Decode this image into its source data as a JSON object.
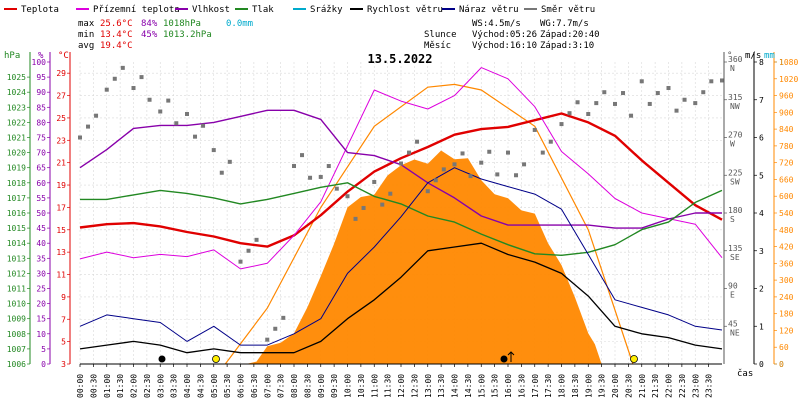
{
  "legend": [
    {
      "label": "Teplota",
      "color": "#e00000"
    },
    {
      "label": "Přízemní teplota",
      "color": "#dd00dd"
    },
    {
      "label": "Vlhkost",
      "color": "#8800aa"
    },
    {
      "label": "Tlak",
      "color": "#228822"
    },
    {
      "label": "Srážky",
      "color": "#00aacc"
    },
    {
      "label": "Rychlost větru",
      "color": "#000000"
    },
    {
      "label": "Náraz větru",
      "color": "#000088"
    },
    {
      "label": "Směr větru",
      "color": "#777777"
    }
  ],
  "stats": {
    "max_label": "max",
    "max_temp": "25.6°C",
    "max_hum": "84%",
    "max_press": "1018hPa",
    "rain": "0.0mm",
    "min_label": "min",
    "min_temp": "13.4°C",
    "min_hum": "45%",
    "min_press": "1013.2hPa",
    "avg_label": "avg",
    "avg_temp": "19.4°C"
  },
  "wind": {
    "ws": "WS:4.5m/s",
    "wg": "WG:7.7m/s"
  },
  "sun": {
    "label": "Slunce",
    "rise": "Východ:05:26",
    "set": "Západ:20:40"
  },
  "moon": {
    "label": "Měsíc",
    "rise": "Východ:16:10",
    "set": "Západ:3:10"
  },
  "date": "13.5.2022",
  "axis_units": {
    "hpa": "hPa",
    "pct": "%",
    "degc": "°C",
    "deg": "°",
    "ms": "m/s",
    "mm": "mm",
    "time": "čas"
  },
  "colors": {
    "temp": "#e00000",
    "ground": "#dd00dd",
    "hum": "#8800aa",
    "press": "#228822",
    "rain": "#00aacc",
    "ws": "#000000",
    "wg": "#000088",
    "wd": "#777777",
    "sun": "#ff8800",
    "grid": "#d9d9d9"
  },
  "chart_data": {
    "type": "line",
    "title": "13.5.2022",
    "xlabel": "čas",
    "x_ticks": [
      "00:00",
      "00:30",
      "01:00",
      "01:30",
      "02:00",
      "02:30",
      "03:00",
      "03:30",
      "04:00",
      "04:30",
      "05:00",
      "05:30",
      "06:00",
      "06:30",
      "07:00",
      "07:30",
      "08:00",
      "08:30",
      "09:00",
      "09:30",
      "10:00",
      "10:30",
      "11:00",
      "11:30",
      "12:00",
      "12:30",
      "13:00",
      "13:30",
      "14:00",
      "14:30",
      "15:00",
      "15:30",
      "16:00",
      "16:30",
      "17:00",
      "17:30",
      "18:00",
      "18:30",
      "19:00",
      "19:30",
      "20:00",
      "20:30",
      "21:00",
      "21:30",
      "22:00",
      "22:30",
      "23:00",
      "23:30"
    ],
    "axes": {
      "pressure": {
        "label": "hPa",
        "ticks": [
          "1006",
          "1007",
          "1008",
          "1009",
          "1010",
          "1011",
          "1012",
          "1013",
          "1014",
          "1015",
          "1016",
          "1017",
          "1018",
          "1019",
          "1020",
          "1021",
          "1022",
          "1023",
          "1024",
          "1025"
        ],
        "range": [
          1006,
          1026
        ]
      },
      "humidity": {
        "label": "%",
        "ticks": [
          "0",
          "5",
          "10",
          "15",
          "20",
          "25",
          "30",
          "35",
          "40",
          "45",
          "50",
          "55",
          "60",
          "65",
          "70",
          "75",
          "80",
          "85",
          "90",
          "95",
          "100"
        ],
        "range": [
          0,
          100
        ]
      },
      "temperature": {
        "label": "°C",
        "ticks": [
          "3",
          "5",
          "7",
          "9",
          "11",
          "13",
          "15",
          "17",
          "19",
          "21",
          "23",
          "25",
          "27",
          "29"
        ],
        "range": [
          3,
          30
        ]
      },
      "direction": {
        "label": "°",
        "ticks": [
          "45 NE",
          "90 E",
          "135 SE",
          "180 S",
          "225 SW",
          "270 W",
          "315 NW",
          "360 N"
        ],
        "range": [
          0,
          360
        ]
      },
      "wind_speed": {
        "label": "m/s",
        "ticks": [
          "0",
          "1",
          "2",
          "3",
          "4",
          "5",
          "6",
          "7",
          "8"
        ],
        "range": [
          0,
          8
        ]
      },
      "solar": {
        "label": "",
        "ticks": [
          "0",
          "60",
          "120",
          "180",
          "240",
          "300",
          "360",
          "420",
          "480",
          "540",
          "600",
          "660",
          "720",
          "780",
          "840",
          "900",
          "960",
          "1020",
          "1080"
        ],
        "range": [
          0,
          1080
        ]
      },
      "rain": {
        "label": "mm",
        "ticks": [
          "0",
          "1"
        ],
        "range": [
          0,
          1
        ]
      }
    },
    "series": [
      {
        "name": "Teplota",
        "unit": "°C",
        "x": [
          0,
          1,
          2,
          3,
          4,
          5,
          6,
          7,
          8,
          9,
          10,
          11,
          12,
          13,
          14,
          15,
          16,
          17,
          18,
          19,
          20,
          21,
          22,
          23,
          24
        ],
        "values": [
          15.2,
          15.5,
          15.6,
          15.3,
          14.8,
          14.4,
          13.8,
          13.5,
          14.5,
          16.3,
          18.4,
          20.2,
          21.4,
          22.4,
          23.5,
          24.0,
          24.2,
          24.8,
          25.4,
          24.6,
          23.4,
          21.2,
          19.2,
          17.2,
          15.9
        ]
      },
      {
        "name": "Přízemní teplota",
        "unit": "°C",
        "x": [
          0,
          1,
          2,
          3,
          4,
          5,
          6,
          7,
          8,
          9,
          10,
          11,
          12,
          13,
          14,
          15,
          16,
          17,
          18,
          19,
          20,
          21,
          22,
          23,
          24
        ],
        "values": [
          12.4,
          13.0,
          12.5,
          12.8,
          12.6,
          13.2,
          11.5,
          12.0,
          14.5,
          17.5,
          22.5,
          27.5,
          26.5,
          25.8,
          27.0,
          29.5,
          28.5,
          26.0,
          22.0,
          20.0,
          17.8,
          16.5,
          16.0,
          15.5,
          12.5
        ]
      },
      {
        "name": "Vlhkost",
        "unit": "%",
        "x": [
          0,
          1,
          2,
          3,
          4,
          5,
          6,
          7,
          8,
          9,
          10,
          11,
          12,
          13,
          14,
          15,
          16,
          17,
          18,
          19,
          20,
          21,
          22,
          23,
          24
        ],
        "values": [
          65,
          71,
          78,
          79,
          79,
          80,
          82,
          84,
          84,
          81,
          70,
          69,
          66,
          60,
          55,
          49,
          46,
          46,
          46,
          46,
          45,
          45,
          48,
          50,
          50
        ]
      },
      {
        "name": "Tlak",
        "unit": "hPa",
        "x": [
          0,
          1,
          2,
          3,
          4,
          5,
          6,
          7,
          8,
          9,
          10,
          11,
          12,
          13,
          14,
          15,
          16,
          17,
          18,
          19,
          20,
          21,
          22,
          23,
          24
        ],
        "values": [
          1016.9,
          1016.9,
          1017.2,
          1017.5,
          1017.3,
          1017.0,
          1016.6,
          1016.9,
          1017.3,
          1017.7,
          1018.0,
          1017.1,
          1016.6,
          1015.8,
          1015.4,
          1014.6,
          1013.9,
          1013.3,
          1013.2,
          1013.4,
          1013.9,
          1014.9,
          1015.4,
          1016.7,
          1017.5
        ]
      },
      {
        "name": "Srážky",
        "unit": "mm",
        "x": [
          0,
          24
        ],
        "values": [
          0,
          0
        ]
      },
      {
        "name": "Rychlost větru",
        "unit": "m/s",
        "x": [
          0,
          1,
          2,
          3,
          4,
          5,
          6,
          7,
          8,
          9,
          10,
          11,
          12,
          13,
          14,
          15,
          16,
          17,
          18,
          19,
          20,
          21,
          22,
          23,
          24
        ],
        "values": [
          0.4,
          0.5,
          0.6,
          0.5,
          0.3,
          0.4,
          0.3,
          0.3,
          0.3,
          0.6,
          1.2,
          1.7,
          2.3,
          3.0,
          3.1,
          3.2,
          2.9,
          2.7,
          2.4,
          1.8,
          1.0,
          0.8,
          0.7,
          0.5,
          0.4
        ]
      },
      {
        "name": "Náraz větru",
        "unit": "m/s",
        "x": [
          0,
          1,
          2,
          3,
          4,
          5,
          6,
          7,
          8,
          9,
          10,
          11,
          12,
          13,
          14,
          15,
          16,
          17,
          18,
          19,
          20,
          21,
          22,
          23,
          24
        ],
        "values": [
          1.0,
          1.3,
          1.2,
          1.1,
          0.6,
          1.0,
          0.5,
          0.5,
          0.8,
          1.2,
          2.4,
          3.1,
          3.9,
          4.8,
          5.2,
          4.9,
          4.7,
          4.5,
          4.1,
          2.9,
          1.7,
          1.5,
          1.3,
          1.0,
          0.9
        ]
      },
      {
        "name": "Směr větru",
        "unit": "°",
        "x": [
          0,
          1,
          2,
          3,
          4,
          5,
          6,
          7,
          8,
          9,
          10,
          11,
          12,
          13,
          14,
          15,
          16,
          17,
          18,
          19,
          20,
          21,
          22,
          23,
          24
        ],
        "values": [
          290,
          340,
          335,
          300,
          290,
          240,
          140,
          40,
          240,
          220,
          190,
          200,
          255,
          215,
          240,
          235,
          240,
          260,
          300,
          305,
          310,
          330,
          315,
          330,
          350
        ]
      }
    ],
    "solar_radiation": {
      "unit": "",
      "x": [
        6.2,
        7,
        8,
        9,
        10,
        11,
        12,
        13,
        14,
        15,
        16,
        17,
        18,
        19,
        19.5
      ],
      "values": [
        0,
        60,
        120,
        300,
        560,
        620,
        700,
        720,
        750,
        650,
        600,
        520,
        350,
        120,
        0
      ]
    },
    "theoretical_solar": {
      "x": [
        5.43,
        7,
        9,
        11,
        13,
        14,
        15,
        17,
        19,
        20.67
      ],
      "values": [
        0,
        200,
        560,
        850,
        990,
        1000,
        980,
        850,
        480,
        0
      ]
    }
  }
}
